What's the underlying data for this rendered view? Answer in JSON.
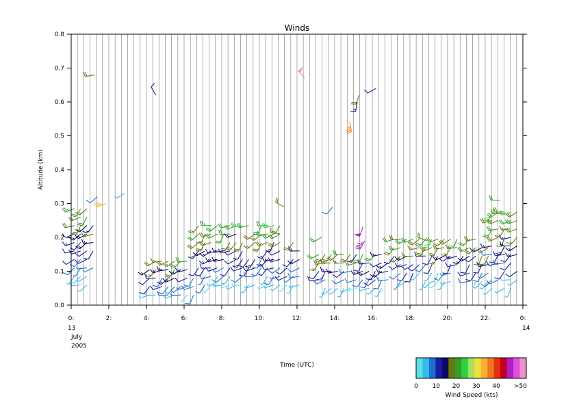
{
  "chart_data": {
    "type": "wind_barbs",
    "title": "Winds",
    "xlabel": "Time (UTC)",
    "ylabel": "Altitude (km)",
    "xlim": [
      0,
      24
    ],
    "ylim": [
      0,
      0.8
    ],
    "x_ticks": [
      {
        "value": 0,
        "label": "0:"
      },
      {
        "value": 2,
        "label": "2:"
      },
      {
        "value": 4,
        "label": "4:"
      },
      {
        "value": 6,
        "label": "6:"
      },
      {
        "value": 8,
        "label": "8:"
      },
      {
        "value": 10,
        "label": "10:"
      },
      {
        "value": 12,
        "label": "12:"
      },
      {
        "value": 14,
        "label": "14:"
      },
      {
        "value": 16,
        "label": "16:"
      },
      {
        "value": 18,
        "label": "18:"
      },
      {
        "value": 20,
        "label": "20:"
      },
      {
        "value": 22,
        "label": "22:"
      },
      {
        "value": 24,
        "label": "0:"
      }
    ],
    "x_sub_labels": {
      "start": [
        "13",
        "July",
        "2005"
      ],
      "end": [
        "14"
      ]
    },
    "y_ticks": [
      {
        "value": 0.0,
        "label": "0.0"
      },
      {
        "value": 0.1,
        "label": "0.1"
      },
      {
        "value": 0.2,
        "label": "0.2"
      },
      {
        "value": 0.3,
        "label": "0.3"
      },
      {
        "value": 0.4,
        "label": "0.4"
      },
      {
        "value": 0.5,
        "label": "0.5"
      },
      {
        "value": 0.6,
        "label": "0.6"
      },
      {
        "value": 0.7,
        "label": "0.7"
      },
      {
        "value": 0.8,
        "label": "0.8"
      }
    ],
    "grid": "vertical",
    "profile_interval_hours": 0.3333,
    "colorbar": {
      "title": "Wind Speed (kts)",
      "location": "bottom-right",
      "colors": [
        "#5fe0e0",
        "#33bbee",
        "#1c6fd0",
        "#1a1aa0",
        "#0a0a60",
        "#667a10",
        "#2fa02a",
        "#30d040",
        "#a8e060",
        "#f0e040",
        "#f8b030",
        "#f07820",
        "#e83010",
        "#c00020",
        "#b020c0",
        "#e050e0",
        "#f090d0"
      ],
      "tick_labels": [
        {
          "value": 0,
          "label": "0"
        },
        {
          "value": 10,
          "label": "10"
        },
        {
          "value": 20,
          "label": "20"
        },
        {
          "value": 30,
          "label": "30"
        },
        {
          "value": 40,
          "label": "40"
        },
        {
          "value": 50,
          "label": ">50"
        }
      ],
      "range": [
        0,
        55
      ]
    },
    "low_level_bands": [
      {
        "t0": 0.0,
        "t1": 1.2,
        "bottom": 0.06,
        "top": 0.3
      },
      {
        "t0": 4.0,
        "t1": 6.6,
        "bottom": 0.03,
        "top": 0.14
      },
      {
        "t0": 6.6,
        "t1": 11.3,
        "bottom": 0.06,
        "top": 0.24
      },
      {
        "t0": 11.3,
        "t1": 12.3,
        "bottom": 0.06,
        "top": 0.2
      },
      {
        "t0": 13.0,
        "t1": 17.0,
        "bottom": 0.05,
        "top": 0.17
      },
      {
        "t0": 17.0,
        "t1": 22.2,
        "bottom": 0.07,
        "top": 0.2
      },
      {
        "t0": 22.2,
        "t1": 24.0,
        "bottom": 0.05,
        "top": 0.28
      }
    ],
    "barbs": [
      {
        "t": 1.25,
        "alt": 0.68,
        "speed": 18,
        "dir": 260
      },
      {
        "t": 1.85,
        "alt": 0.3,
        "speed": 34,
        "dir": 250
      },
      {
        "t": 1.4,
        "alt": 0.32,
        "speed": 8,
        "dir": 230
      },
      {
        "t": 2.85,
        "alt": 0.33,
        "speed": 4,
        "dir": 240
      },
      {
        "t": 4.5,
        "alt": 0.62,
        "speed": 12,
        "dir": 330
      },
      {
        "t": 12.4,
        "alt": 0.67,
        "speed": 52,
        "dir": 320
      },
      {
        "t": 14.8,
        "alt": 0.54,
        "speed": 36,
        "dir": 170
      },
      {
        "t": 15.3,
        "alt": 0.62,
        "speed": 18,
        "dir": 200
      },
      {
        "t": 15.2,
        "alt": 0.6,
        "speed": 16,
        "dir": 190
      },
      {
        "t": 16.2,
        "alt": 0.64,
        "speed": 11,
        "dir": 240
      },
      {
        "t": 11.3,
        "alt": 0.29,
        "speed": 18,
        "dir": 300
      },
      {
        "t": 13.3,
        "alt": 0.2,
        "speed": 22,
        "dir": 240
      },
      {
        "t": 13.9,
        "alt": 0.29,
        "speed": 8,
        "dir": 220
      },
      {
        "t": 15.5,
        "alt": 0.23,
        "speed": 48,
        "dir": 200
      },
      {
        "t": 15.6,
        "alt": 0.19,
        "speed": 46,
        "dir": 210
      },
      {
        "t": 22.8,
        "alt": 0.31,
        "speed": 20,
        "dir": 270
      },
      {
        "t": 22.9,
        "alt": 0.27,
        "speed": 18,
        "dir": 270
      },
      {
        "t": 11.1,
        "alt": 0.21,
        "speed": 18,
        "dir": 280
      },
      {
        "t": 18.9,
        "alt": 0.19,
        "speed": 19,
        "dir": 290
      }
    ]
  }
}
